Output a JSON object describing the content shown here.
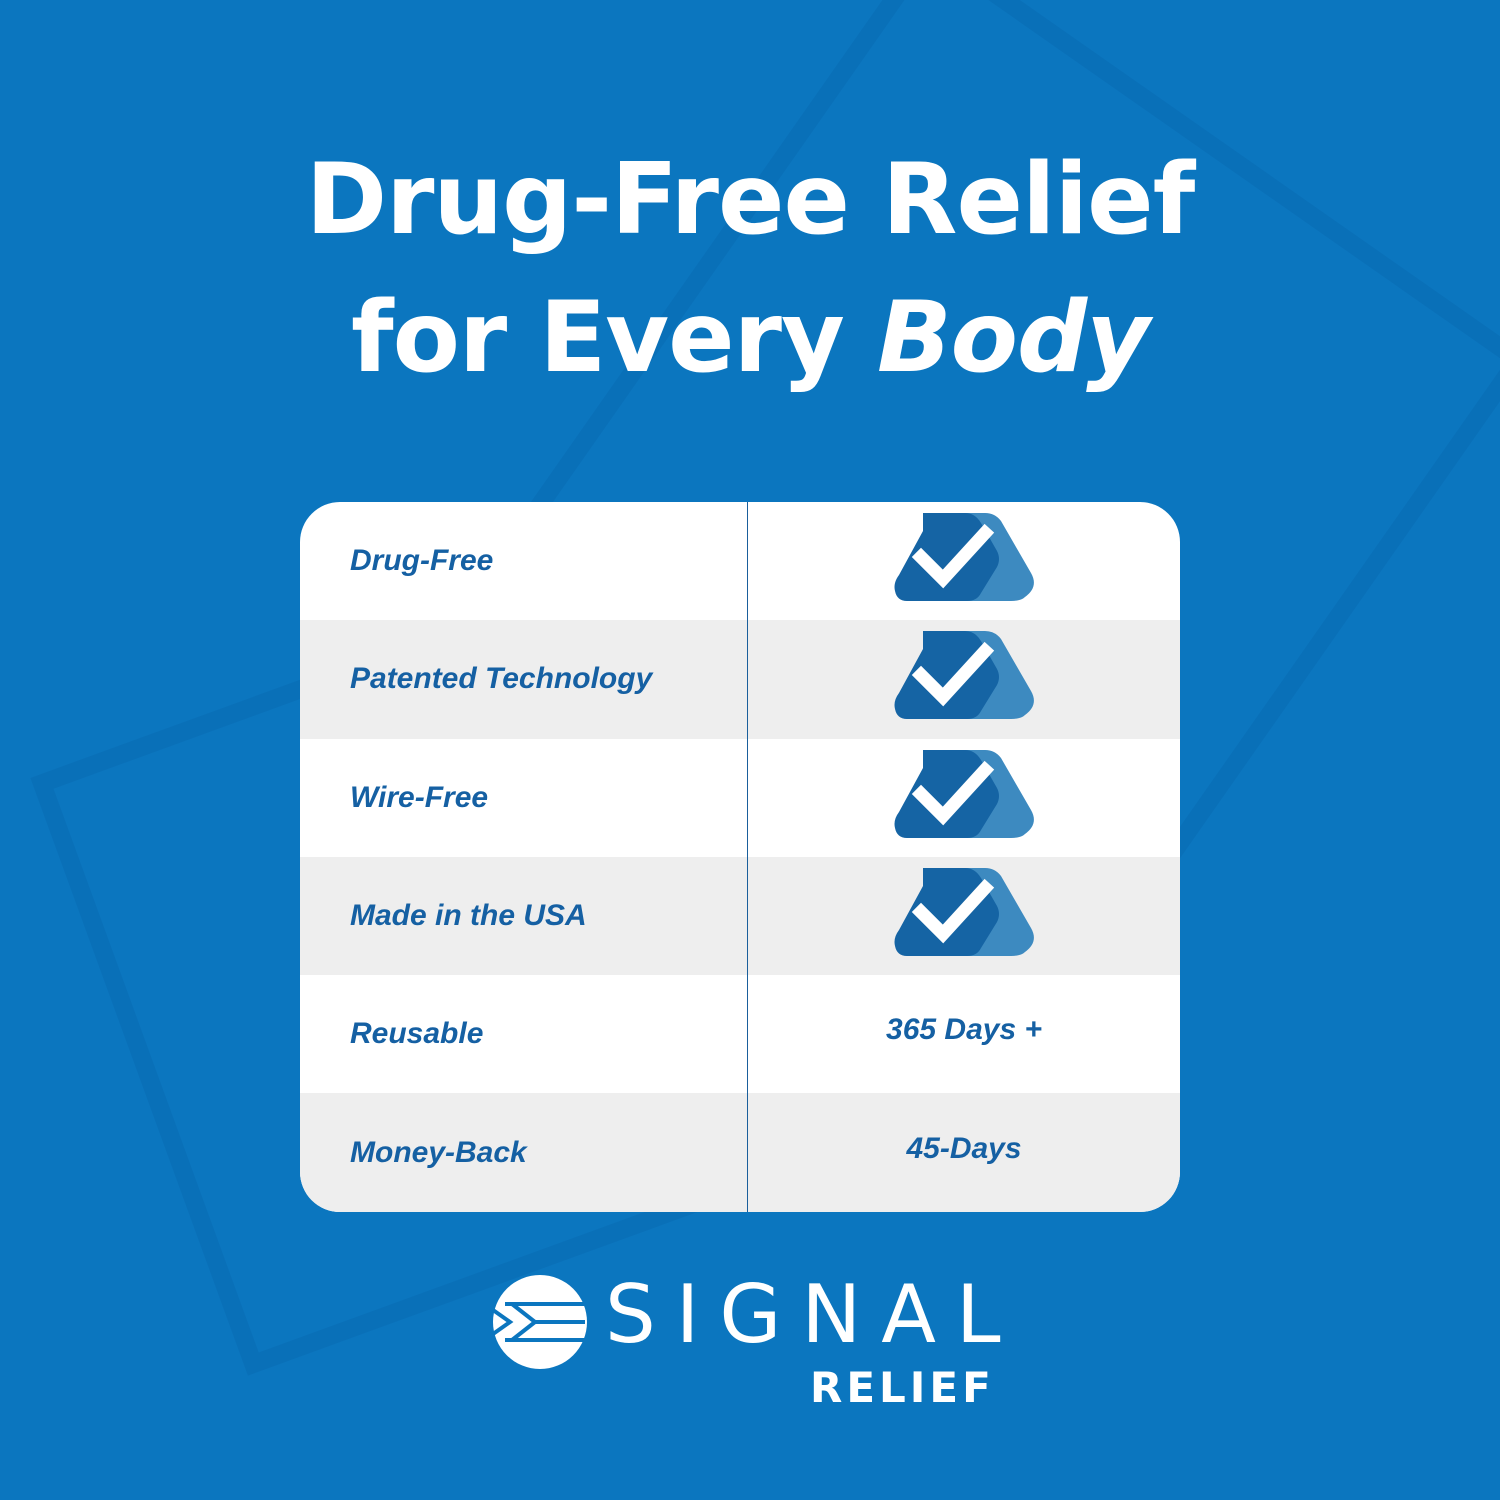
{
  "headline": {
    "line1": "Drug-Free Relief",
    "line2_plain": "for Every ",
    "line2_italic": "Body"
  },
  "table": {
    "rows": [
      {
        "feature": "Drug-Free",
        "value": "",
        "icon": "check-icon"
      },
      {
        "feature": "Patented Technology",
        "value": "",
        "icon": "check-icon"
      },
      {
        "feature": "Wire-Free",
        "value": "",
        "icon": "check-icon"
      },
      {
        "feature": "Made in the USA",
        "value": "",
        "icon": "check-icon"
      },
      {
        "feature": "Reusable",
        "value": "365 Days +"
      },
      {
        "feature": "Money-Back",
        "value": "45-Days"
      }
    ]
  },
  "brand": {
    "name": "SIGNAL",
    "sub": "RELIEF"
  },
  "colors": {
    "background": "#0b76bf",
    "text_blue": "#1560a3",
    "check_dark": "#1564a4",
    "check_light": "#3d8ac0"
  }
}
